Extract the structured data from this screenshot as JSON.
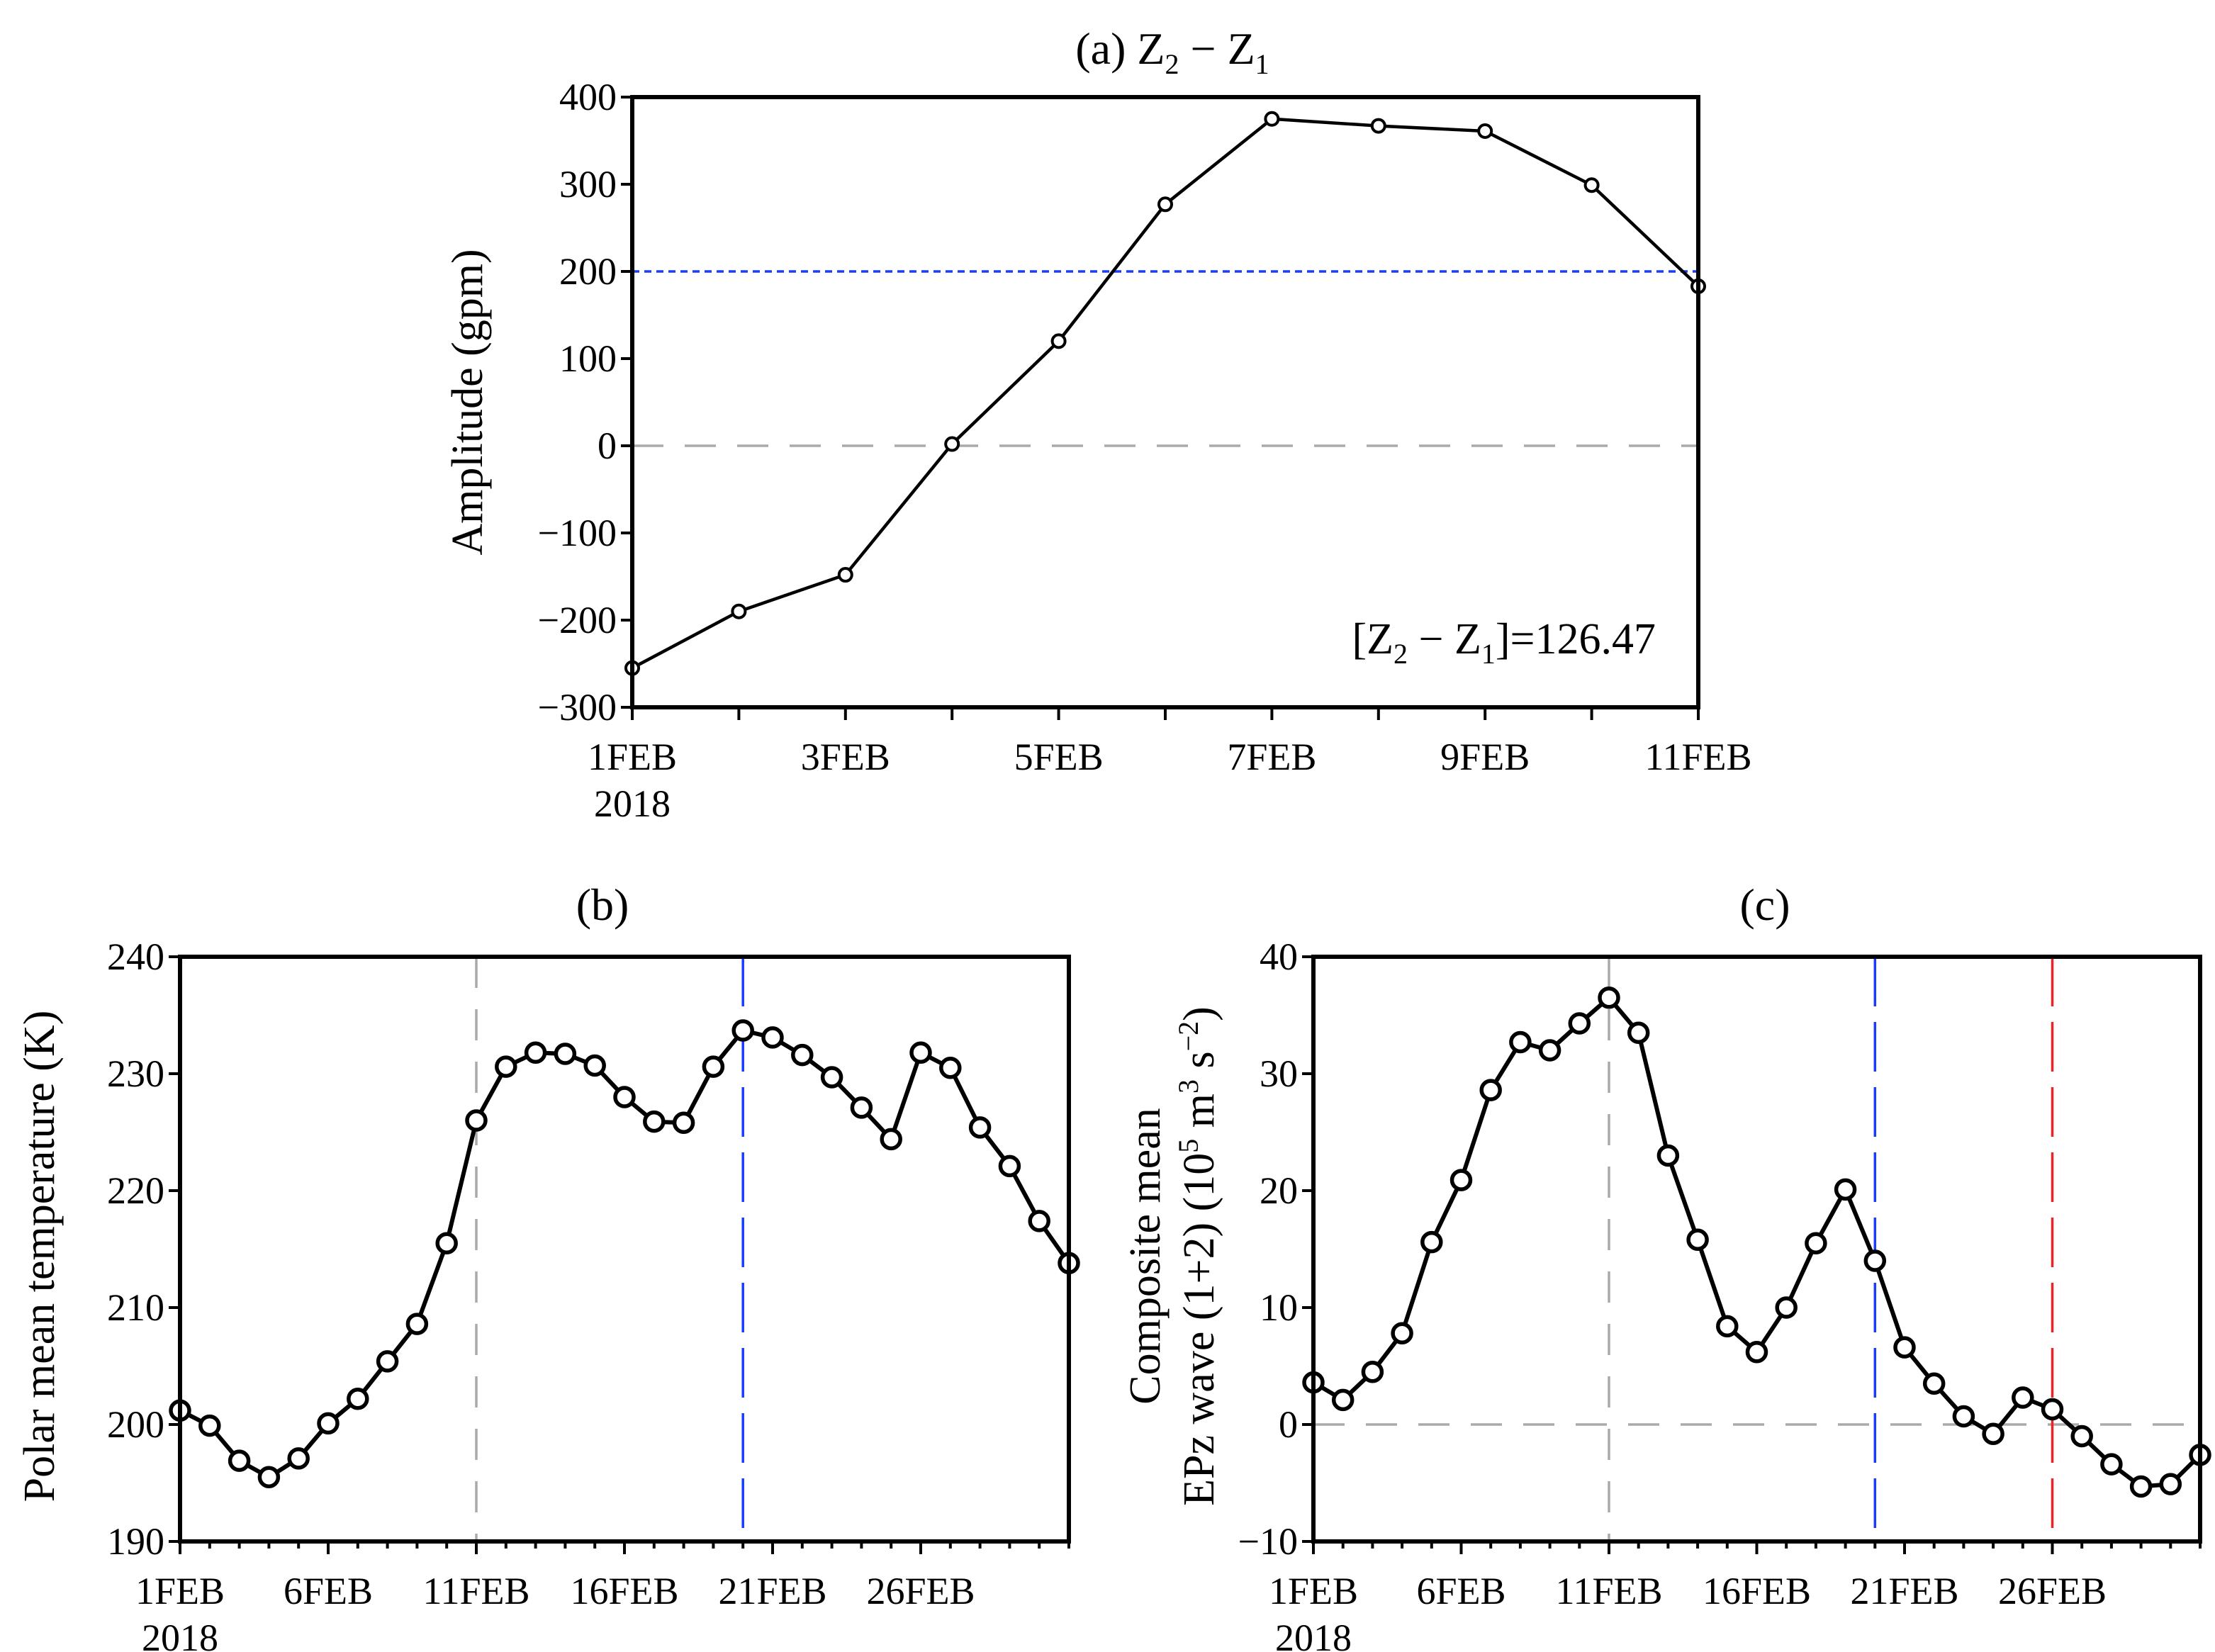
{
  "chart_data": [
    {
      "id": "a",
      "type": "line",
      "title": "(a) Z2 − Z1",
      "title_parts": {
        "prefix": "(a) Z",
        "sub1": "2",
        "mid": " − Z",
        "sub2": "1"
      },
      "ylabel": "Amplitude (gpm)",
      "xlabel": "",
      "x_date_labels": [
        "1FEB",
        "3FEB",
        "5FEB",
        "7FEB",
        "9FEB",
        "11FEB"
      ],
      "x_year_label": "2018",
      "x_label_days": [
        1,
        3,
        5,
        7,
        9,
        11
      ],
      "xlim": [
        1,
        11
      ],
      "ylim": [
        -300,
        400
      ],
      "yticks": [
        -300,
        -200,
        -100,
        0,
        100,
        200,
        300,
        400
      ],
      "ytick_labels": [
        "−300",
        "−200",
        "−100",
        "0",
        "100",
        "200",
        "300",
        "400"
      ],
      "x": [
        1,
        2,
        3,
        4,
        5,
        6,
        7,
        8,
        9,
        10,
        11
      ],
      "values": [
        -255,
        -190,
        -148,
        2,
        120,
        277,
        375,
        367,
        361,
        299,
        183
      ],
      "reference_lines": [
        {
          "axis": "y",
          "value": 0,
          "color": "#aaaaaa",
          "style": "dashed"
        },
        {
          "axis": "y",
          "value": 200,
          "color": "#1a3cff",
          "style": "dotted"
        }
      ],
      "annotation": {
        "text": "[Z2 − Z1]=126.47",
        "prefix": "[Z",
        "sub1": "2",
        "mid": " − Z",
        "sub2": "1",
        "suffix": "]=126.47"
      }
    },
    {
      "id": "b",
      "type": "line",
      "title": "(b)",
      "ylabel": "Polar mean temperature  (K)",
      "xlabel": "",
      "x_date_labels": [
        "1FEB",
        "6FEB",
        "11FEB",
        "16FEB",
        "21FEB",
        "26FEB"
      ],
      "x_year_label": "2018",
      "x_label_days": [
        1,
        6,
        11,
        16,
        21,
        26
      ],
      "xlim": [
        1,
        31
      ],
      "ylim": [
        190,
        240
      ],
      "yticks": [
        190,
        200,
        210,
        220,
        230,
        240
      ],
      "ytick_labels": [
        "190",
        "200",
        "210",
        "220",
        "230",
        "240"
      ],
      "x": [
        1,
        2,
        3,
        4,
        5,
        6,
        7,
        8,
        9,
        10,
        11,
        12,
        13,
        14,
        15,
        16,
        17,
        18,
        19,
        20,
        21,
        22,
        23,
        24,
        25,
        26,
        27,
        28,
        29,
        30,
        31
      ],
      "values": [
        201.2,
        199.9,
        196.9,
        195.5,
        197.1,
        200.1,
        202.2,
        205.4,
        208.6,
        215.5,
        226.0,
        230.6,
        231.8,
        231.7,
        230.7,
        228.0,
        225.9,
        225.8,
        230.6,
        233.7,
        233.1,
        231.6,
        229.7,
        227.1,
        224.4,
        231.8,
        230.5,
        225.4,
        222.1,
        217.4,
        213.8
      ],
      "reference_lines": [
        {
          "axis": "x",
          "value": 11,
          "color": "#aaaaaa",
          "style": "dashed"
        },
        {
          "axis": "x",
          "value": 20,
          "color": "#1a3cff",
          "style": "longdash"
        }
      ]
    },
    {
      "id": "c",
      "type": "line",
      "title": "(c)",
      "ylabel_line1": "Composite mean",
      "ylabel_line2_prefix": "EPz wave  (1+2) (10",
      "ylabel_line2_sup1": "5",
      "ylabel_line2_mid": " m",
      "ylabel_line2_sup2": "3",
      "ylabel_line2_mid2": " s",
      "ylabel_line2_sup3": "−2",
      "ylabel_line2_suffix": ")",
      "xlabel": "",
      "x_date_labels": [
        "1FEB",
        "6FEB",
        "11FEB",
        "16FEB",
        "21FEB",
        "26FEB"
      ],
      "x_year_label": "2018",
      "x_label_days": [
        1,
        6,
        11,
        16,
        21,
        26
      ],
      "xlim": [
        1,
        31
      ],
      "ylim": [
        -10,
        40
      ],
      "yticks": [
        -10,
        0,
        10,
        20,
        30,
        40
      ],
      "ytick_labels": [
        "−10",
        "0",
        "10",
        "20",
        "30",
        "40"
      ],
      "x": [
        1,
        2,
        3,
        4,
        5,
        6,
        7,
        8,
        9,
        10,
        11,
        12,
        13,
        14,
        15,
        16,
        17,
        18,
        19,
        20,
        21,
        22,
        23,
        24,
        25,
        26,
        27,
        28,
        29,
        30,
        31
      ],
      "values": [
        3.6,
        2.1,
        4.5,
        7.8,
        15.6,
        20.9,
        28.6,
        32.7,
        32.0,
        34.3,
        36.5,
        33.5,
        23.0,
        15.8,
        8.4,
        6.2,
        10.0,
        15.5,
        20.1,
        14.0,
        6.6,
        3.5,
        0.7,
        -0.8,
        2.3,
        1.3,
        -1.0,
        -3.4,
        -5.3,
        -5.1,
        -2.6
      ],
      "reference_lines": [
        {
          "axis": "y",
          "value": 0,
          "color": "#aaaaaa",
          "style": "dashed"
        },
        {
          "axis": "x",
          "value": 11,
          "color": "#aaaaaa",
          "style": "dashed"
        },
        {
          "axis": "x",
          "value": 20,
          "color": "#1a3cff",
          "style": "longdash"
        },
        {
          "axis": "x",
          "value": 26,
          "color": "#e8262a",
          "style": "longdash"
        }
      ]
    }
  ]
}
